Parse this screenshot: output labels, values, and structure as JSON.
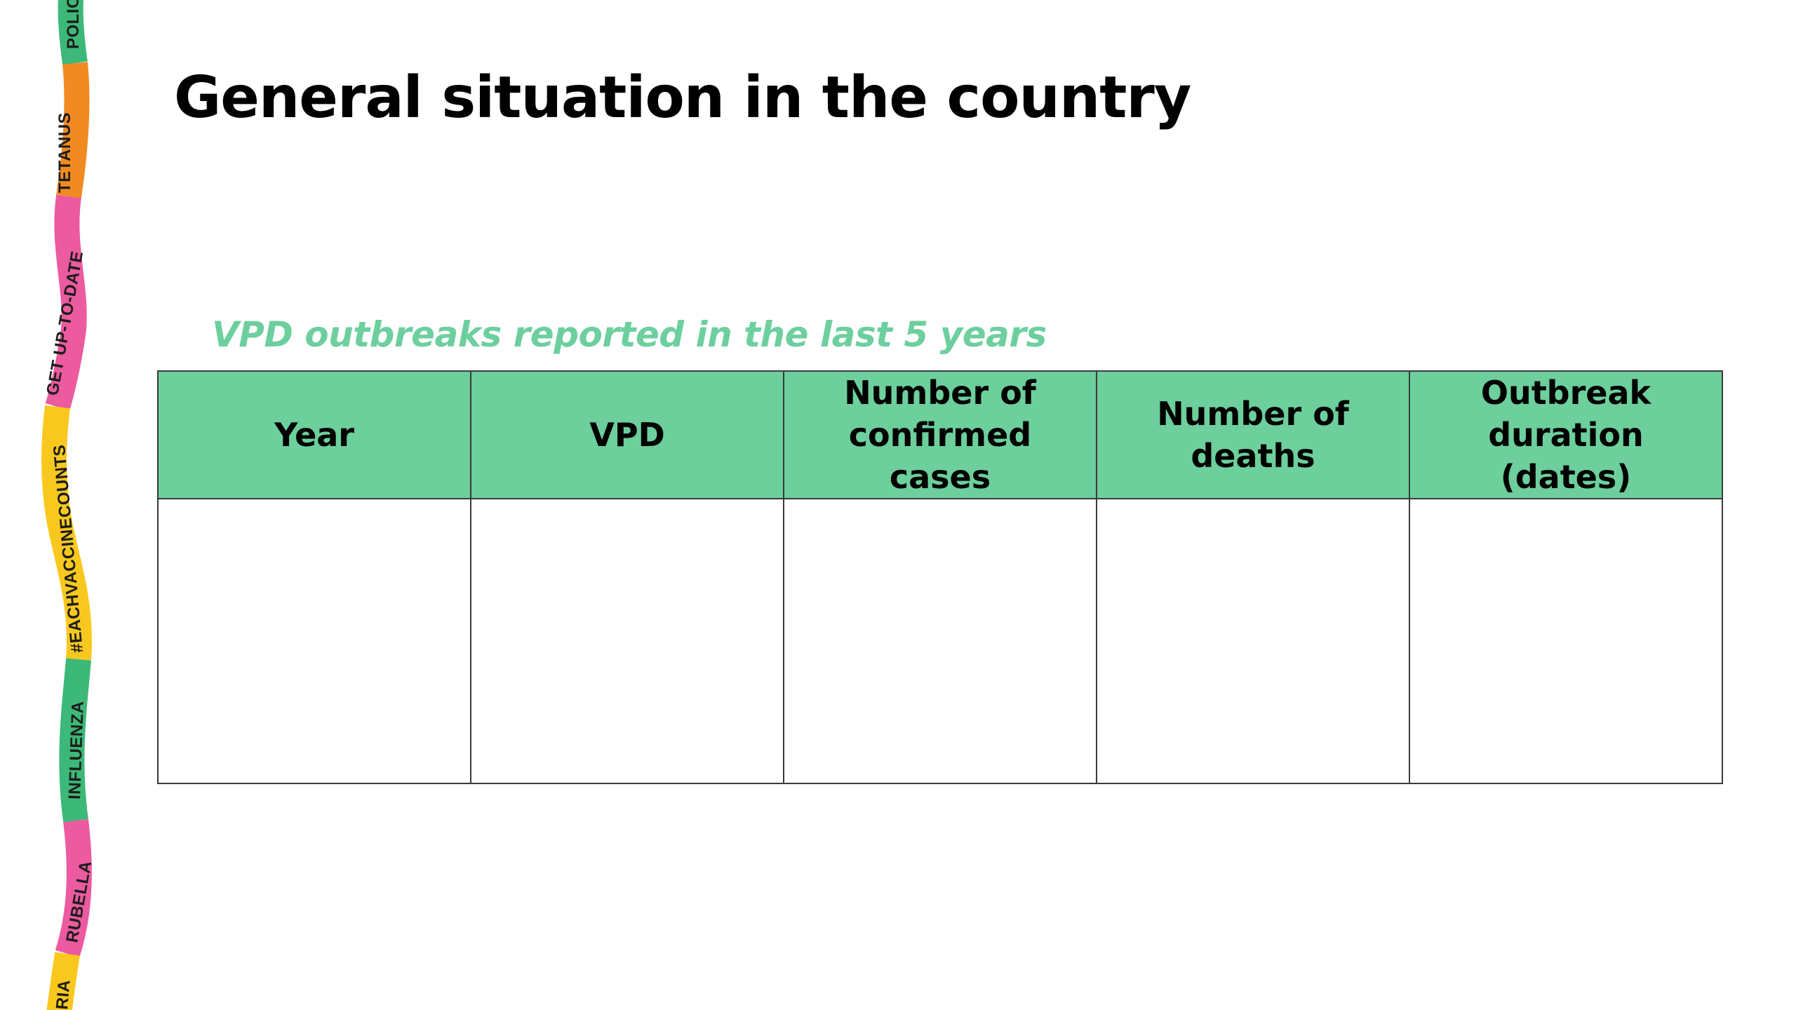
{
  "slide": {
    "title": "General situation in the country",
    "subtitle": "VPD outbreaks reported in the last 5 years"
  },
  "ribbon": {
    "labels": [
      "POLIO",
      "TETANUS",
      "GET UP-TO-DATE",
      "#EACHVACCINECOUNTS",
      "INFLUENZA",
      "RUBELLA",
      "RIA"
    ],
    "colors": {
      "green": "#3cb878",
      "orange": "#f28a22",
      "pink": "#ec5aa0",
      "yellow": "#f9c81e"
    }
  },
  "table": {
    "columns": [
      {
        "label": "Year"
      },
      {
        "label": "VPD"
      },
      {
        "label": "Number of confirmed cases"
      },
      {
        "label": "Number of deaths"
      },
      {
        "label": "Outbreak duration (dates)"
      }
    ],
    "rows": [
      [
        "",
        "",
        "",
        "",
        ""
      ]
    ],
    "header_color": "#6ccf9c",
    "subtitle_color": "#6dcf9e"
  }
}
